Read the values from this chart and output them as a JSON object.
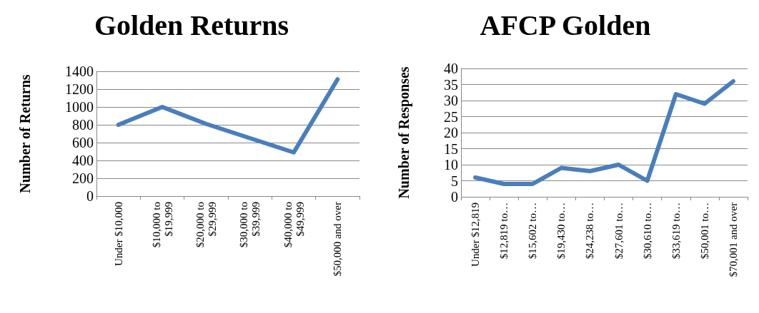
{
  "chart_data": [
    {
      "type": "line",
      "title": "Golden Returns",
      "ylabel": "Number of Returns",
      "categories": [
        "Under $10,000",
        "$10,000 to\n$19,999",
        "$20,000 to\n$29,999",
        "$30,000 to\n$39,999",
        "$40,000 to\n$49,999",
        "$50,000 and over"
      ],
      "series": [
        {
          "color": "#4a7ebb",
          "values": [
            800,
            1000,
            810,
            650,
            490,
            1310
          ]
        }
      ],
      "ylim": [
        0,
        1400
      ],
      "yticks": [
        0,
        200,
        400,
        600,
        800,
        1000,
        1200,
        1400
      ],
      "grid": "y",
      "marker": "none",
      "line_style": "solid"
    },
    {
      "type": "line",
      "title": "AFCP Golden",
      "ylabel": "Number of Responses",
      "categories": [
        "Under $12,819",
        "$12,819 to…",
        "$15,602 to…",
        "$19,430 to…",
        "$24,238 to…",
        "$27,601 to…",
        "$30,610 to…",
        "$33,619 to…",
        "$50,001 to…",
        "$70,001 and over"
      ],
      "series": [
        {
          "color": "#4a7ebb",
          "values": [
            6,
            4,
            4,
            9,
            8,
            10,
            5,
            32,
            29,
            36
          ]
        }
      ],
      "ylim": [
        0,
        40
      ],
      "yticks": [
        0,
        5,
        10,
        15,
        20,
        25,
        30,
        35,
        40
      ],
      "grid": "y",
      "marker": "none",
      "line_style": "solid"
    }
  ]
}
